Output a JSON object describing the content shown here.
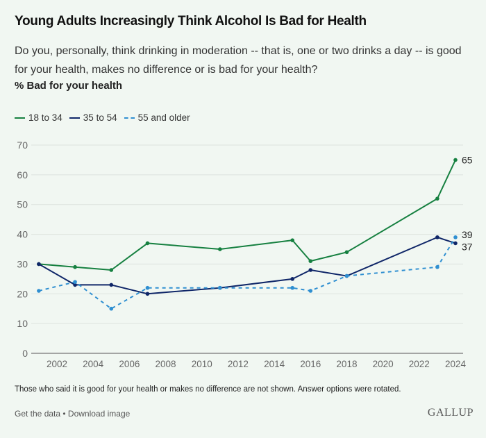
{
  "header": {
    "title": "Young Adults Increasingly Think Alcohol Is Bad for Health",
    "subtitle": "Do you, personally, think drinking in moderation -- that is, one or two drinks a day -- is good for your health, makes no difference or is bad for your health?",
    "metric": "% Bad for your health"
  },
  "footer": {
    "note": "Those who said it is good for your health or makes no difference are not shown. Answer options were rotated.",
    "get_data": "Get the data",
    "separator": " • ",
    "download": "Download image",
    "logo": "GALLUP"
  },
  "chart_data": {
    "type": "line",
    "title": "Young Adults Increasingly Think Alcohol Is Bad for Health",
    "xlabel": "",
    "ylabel": "% Bad for your health",
    "xlim": [
      2001,
      2024
    ],
    "ylim": [
      0,
      70
    ],
    "x_ticks": [
      2002,
      2004,
      2006,
      2008,
      2010,
      2012,
      2014,
      2016,
      2018,
      2020,
      2022,
      2024
    ],
    "y_ticks": [
      0,
      10,
      20,
      30,
      40,
      50,
      60,
      70
    ],
    "grid": true,
    "legend_position": "top-left",
    "x": [
      2001,
      2003,
      2005,
      2007,
      2011,
      2015,
      2016,
      2018,
      2023,
      2024
    ],
    "series": [
      {
        "name": "18 to 34",
        "color": "#168040",
        "dashed": false,
        "values": [
          30,
          29,
          28,
          37,
          35,
          38,
          31,
          34,
          52,
          65
        ],
        "end_label": "65"
      },
      {
        "name": "35 to 54",
        "color": "#0f2668",
        "dashed": false,
        "values": [
          30,
          23,
          23,
          20,
          22,
          25,
          28,
          26,
          39,
          37
        ],
        "end_label": "37"
      },
      {
        "name": "55 and older",
        "color": "#2f8fd1",
        "dashed": true,
        "values": [
          21,
          24,
          15,
          22,
          22,
          22,
          21,
          26,
          29,
          39
        ],
        "end_label": "39"
      }
    ]
  }
}
